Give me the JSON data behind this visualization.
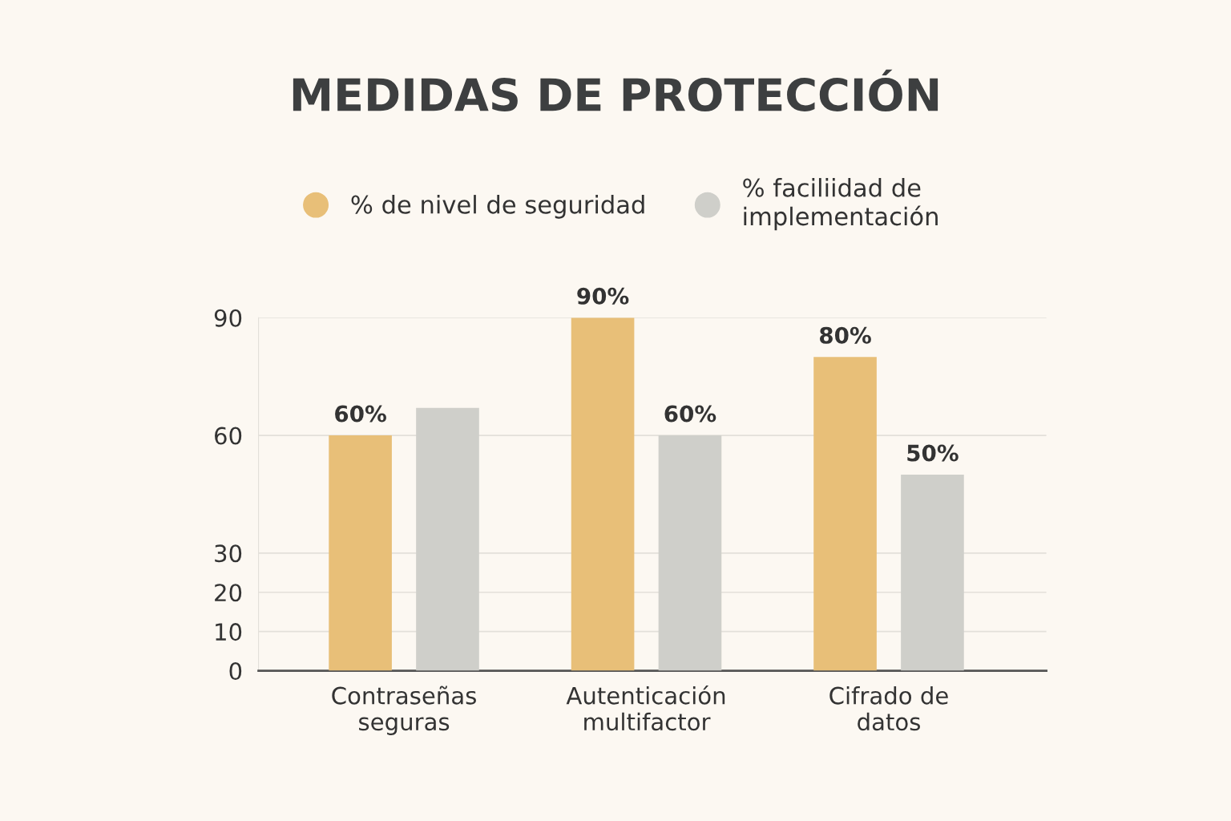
{
  "chart_data": {
    "type": "bar",
    "title": "MEDIDAS DE PROTECCIÓN",
    "categories": [
      "Contraseñas\nseguras",
      "Autenticación\nmultifactor",
      "Cifrado de\ndatos"
    ],
    "series": [
      {
        "name": "% de nivel de seguridad",
        "color": "#e8bf78",
        "values": [
          60,
          90,
          80
        ],
        "value_labels": [
          "60%",
          "90%",
          "80%"
        ]
      },
      {
        "name": "% faciliidad de\nimplementación",
        "color": "#cfcfca",
        "values": [
          67,
          60,
          50
        ],
        "value_labels": [
          null,
          "60%",
          "50%"
        ]
      }
    ],
    "ylim": [
      0,
      90
    ],
    "yticks": [
      0,
      10,
      20,
      30,
      60,
      90
    ],
    "grid": "y",
    "legend": "top"
  }
}
